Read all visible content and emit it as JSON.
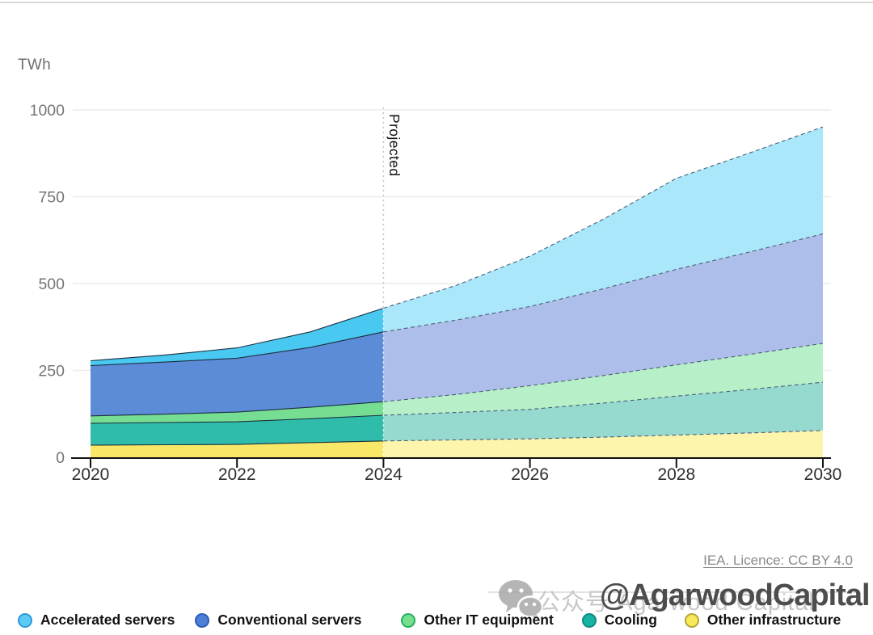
{
  "page": {
    "unit_label": "TWh",
    "projected_label": "Projected",
    "licence_text": "IEA. Licence: CC BY 4.0"
  },
  "watermark": {
    "icon": "wechat-icon",
    "light_text": "公众号 Agarwood Capital",
    "dark_text": "@AgarwoodCapital"
  },
  "legend": {
    "items": [
      {
        "label": "Accelerated servers",
        "dot_fill": "#5BCBF5",
        "dot_border": "#2D9CDB"
      },
      {
        "label": "Conventional servers",
        "dot_fill": "#4D7FD6",
        "dot_border": "#2B5CB8"
      },
      {
        "label": "Other IT equipment",
        "dot_fill": "#77DE90",
        "dot_border": "#27AE60"
      },
      {
        "label": "Cooling",
        "dot_fill": "#17B3A3",
        "dot_border": "#0E8C80"
      },
      {
        "label": "Other infrastructure",
        "dot_fill": "#F8E95A",
        "dot_border": "#B3A63C"
      }
    ]
  },
  "chart_data": {
    "type": "area",
    "stacked": true,
    "title": "",
    "unit": "TWh",
    "ylabel": "TWh",
    "xlabel": "",
    "x": [
      2020,
      2021,
      2022,
      2023,
      2024,
      2025,
      2026,
      2027,
      2028,
      2029,
      2030
    ],
    "x_ticks": [
      2020,
      2022,
      2024,
      2026,
      2028,
      2030
    ],
    "y_ticks": [
      0,
      250,
      500,
      750,
      1000
    ],
    "ylim": [
      0,
      1000
    ],
    "grid": "horizontal",
    "legend_position": "bottom",
    "projection_start_x": 2024,
    "projected_annotation": "Projected",
    "series_bottom_to_top": [
      {
        "name": "Other infrastructure",
        "color": "#F9E868",
        "color_projected": "#FCF5AB",
        "values": [
          35,
          36,
          37,
          42,
          47,
          50,
          53,
          58,
          64,
          70,
          77
        ]
      },
      {
        "name": "Cooling",
        "color": "#2FBCAB",
        "color_projected": "#96D9CF",
        "values": [
          63,
          64,
          65,
          69,
          74,
          79,
          85,
          98,
          112,
          125,
          139
        ]
      },
      {
        "name": "Other IT equipment",
        "color": "#76DE92",
        "color_projected": "#B7F0C8",
        "values": [
          21,
          24,
          28,
          33,
          39,
          52,
          68,
          79,
          90,
          101,
          112
        ]
      },
      {
        "name": "Conventional servers",
        "color": "#5C8BD7",
        "color_projected": "#ACBEE9",
        "values": [
          145,
          150,
          155,
          172,
          201,
          214,
          228,
          250,
          275,
          295,
          315
        ]
      },
      {
        "name": "Accelerated servers",
        "color": "#49C9F2",
        "color_projected": "#ABE7FA",
        "values": [
          14,
          20,
          30,
          45,
          68,
          100,
          145,
          200,
          262,
          285,
          308
        ]
      }
    ],
    "totals_by_year": [
      278,
      294,
      315,
      361,
      429,
      495,
      579,
      685,
      803,
      876,
      951
    ],
    "line_style": {
      "historical": "solid",
      "projected": "dashed"
    }
  }
}
